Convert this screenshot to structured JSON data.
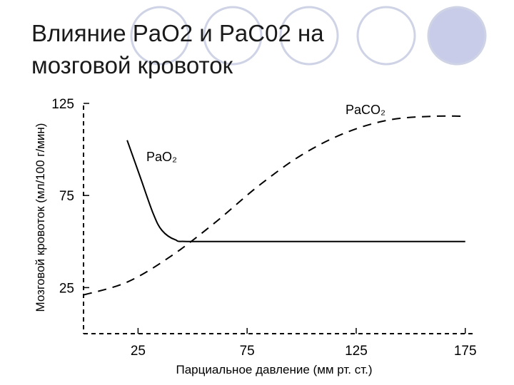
{
  "slide": {
    "title_line1": "Влияние PaO2 и PaC02 на",
    "title_line2": "мозговой кровоток"
  },
  "colors": {
    "circle_stroke": "#cfd3e6",
    "circle_fill": "#c9cce8",
    "ink": "#000000"
  },
  "chart_data": {
    "type": "line",
    "xlabel": "Парциальное давление (мм рт. ст.)",
    "ylabel": "Мозговой кровоток (мл/100 г/мин)",
    "xlim": [
      0,
      180
    ],
    "ylim": [
      0,
      125
    ],
    "x_ticks": [
      25,
      75,
      125,
      175
    ],
    "y_ticks": [
      25,
      75,
      125
    ],
    "grid": false,
    "series": [
      {
        "name": "PaO2",
        "style": "solid",
        "label": "PaO₂",
        "points": [
          [
            20,
            105
          ],
          [
            26,
            85
          ],
          [
            32,
            65
          ],
          [
            36,
            56
          ],
          [
            42,
            51
          ],
          [
            50,
            50
          ],
          [
            100,
            50
          ],
          [
            175,
            50
          ]
        ]
      },
      {
        "name": "PaCO2",
        "style": "dashed",
        "label": "PaCO₂",
        "points": [
          [
            0,
            21
          ],
          [
            20,
            28
          ],
          [
            40,
            42
          ],
          [
            60,
            60
          ],
          [
            80,
            80
          ],
          [
            100,
            97
          ],
          [
            120,
            109
          ],
          [
            140,
            116
          ],
          [
            160,
            118
          ],
          [
            175,
            118
          ]
        ]
      }
    ]
  }
}
